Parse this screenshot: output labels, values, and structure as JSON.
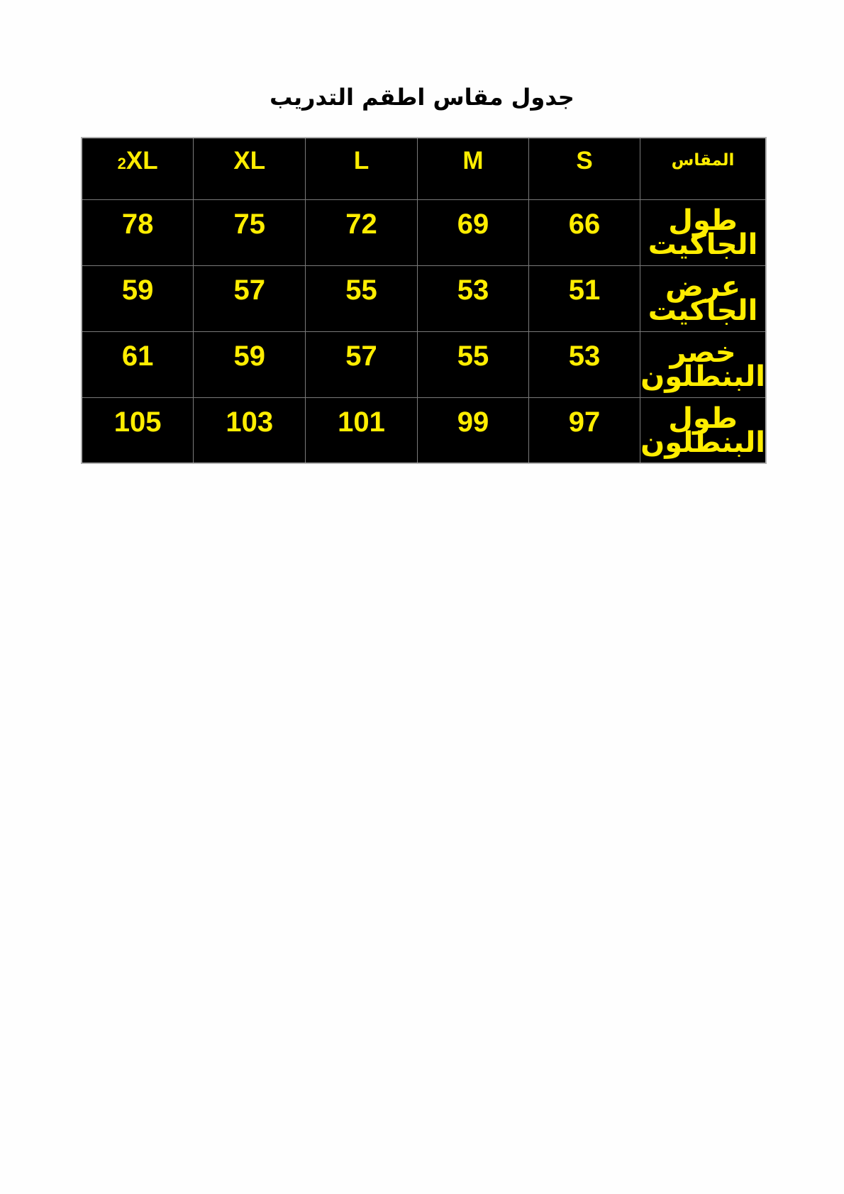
{
  "title": "جدول مقاس اطقم التدريب",
  "table": {
    "header_label": "المقاس",
    "sizes": [
      "S",
      "M",
      "L",
      "XL",
      "2XL"
    ],
    "rows": [
      {
        "label_line1": "طول",
        "label_line2": "الجاكيت",
        "values": [
          "66",
          "69",
          "72",
          "75",
          "78"
        ]
      },
      {
        "label_line1": "عرض",
        "label_line2": "الجاكيت",
        "values": [
          "51",
          "53",
          "55",
          "57",
          "59"
        ]
      },
      {
        "label_line1": "خصر",
        "label_line2": "البنطلون",
        "values": [
          "53",
          "55",
          "57",
          "59",
          "61"
        ]
      },
      {
        "label_line1": "طول",
        "label_line2": "البنطلون",
        "values": [
          "97",
          "99",
          "101",
          "103",
          "105"
        ]
      }
    ]
  },
  "colors": {
    "cell_bg": "#000000",
    "text": "#ffed00"
  }
}
